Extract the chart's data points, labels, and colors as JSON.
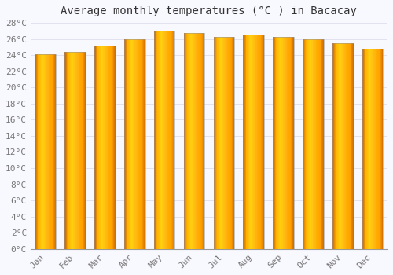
{
  "title": "Average monthly temperatures (°C ) in Bacacay",
  "months": [
    "Jan",
    "Feb",
    "Mar",
    "Apr",
    "May",
    "Jun",
    "Jul",
    "Aug",
    "Sep",
    "Oct",
    "Nov",
    "Dec"
  ],
  "values": [
    24.1,
    24.4,
    25.2,
    26.0,
    27.0,
    26.7,
    26.3,
    26.5,
    26.3,
    26.0,
    25.5,
    24.8
  ],
  "bar_color_center": "#FFA500",
  "bar_color_edge": "#E08000",
  "bar_color_highlight": "#FFD040",
  "ylim": [
    0,
    28
  ],
  "ytick_step": 2,
  "background_color": "#F8F8FF",
  "grid_color": "#DDDDEE",
  "title_fontsize": 10,
  "tick_fontsize": 8,
  "bar_width": 0.7
}
